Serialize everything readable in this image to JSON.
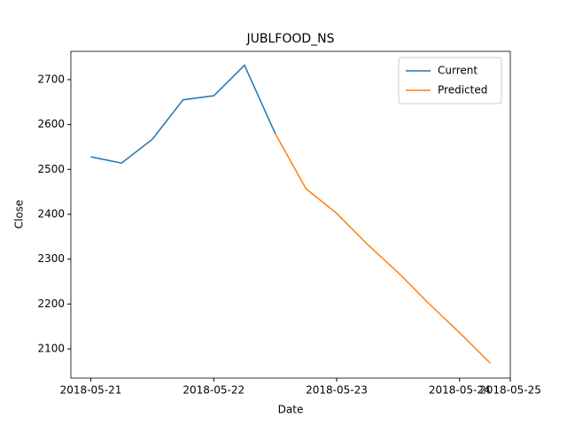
{
  "chart_data": {
    "type": "line",
    "title": "JUBLFOOD_NS",
    "xlabel": "Date",
    "ylabel": "Close",
    "series": [
      {
        "name": "Current",
        "color": "#1f77b4",
        "x": [
          0,
          1,
          2,
          3,
          4,
          5,
          6
        ],
        "values": [
          2528,
          2514,
          2567,
          2655,
          2664,
          2732,
          2580
        ]
      },
      {
        "name": "Predicted",
        "color": "#ff7f0e",
        "x": [
          6,
          7,
          8,
          9,
          10,
          11,
          12,
          13
        ],
        "values": [
          2580,
          2457,
          2402,
          2333,
          2270,
          2201,
          2136,
          2068
        ]
      }
    ],
    "xlim": [
      -0.65,
      13.65
    ],
    "xticks": [
      {
        "value": 0,
        "label": "2018-05-21"
      },
      {
        "value": 4,
        "label": "2018-05-22"
      },
      {
        "value": 8,
        "label": "2018-05-23"
      },
      {
        "value": 12,
        "label": "2018-05-24"
      },
      {
        "value": 13.65,
        "label": "2018-05-25"
      }
    ],
    "ylim": [
      2035,
      2763
    ],
    "yticks": [
      2100,
      2200,
      2300,
      2400,
      2500,
      2600,
      2700
    ],
    "legend": "upper right",
    "grid": false
  }
}
